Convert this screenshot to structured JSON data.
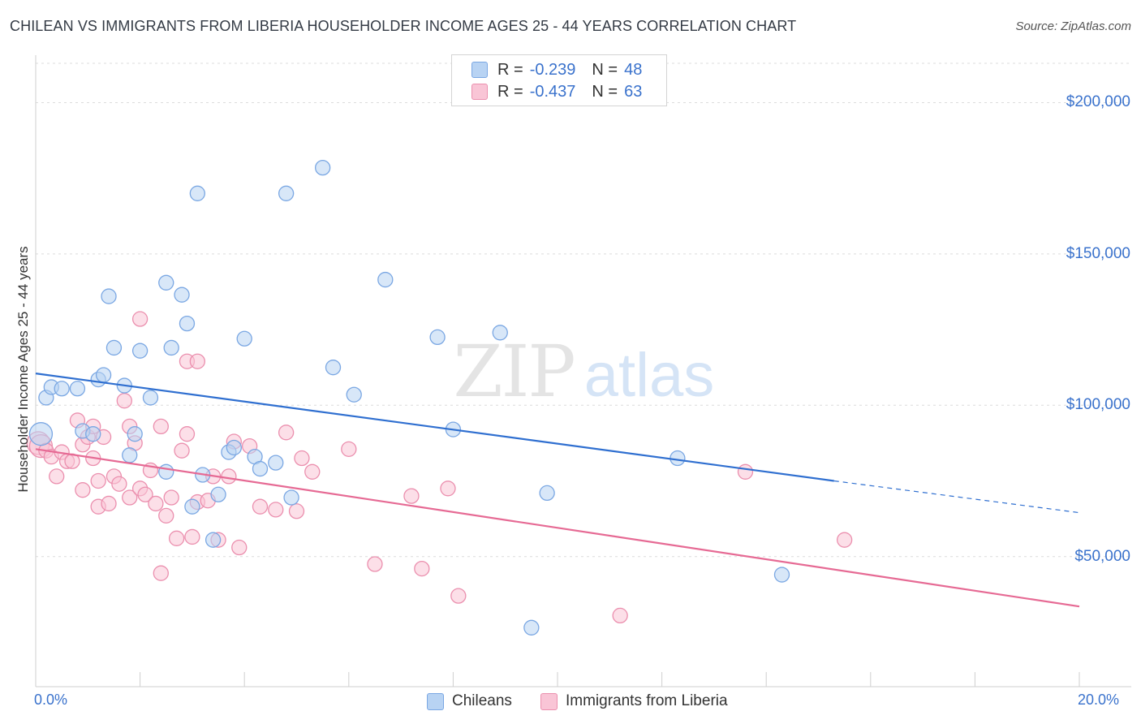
{
  "title": "CHILEAN VS IMMIGRANTS FROM LIBERIA HOUSEHOLDER INCOME AGES 25 - 44 YEARS CORRELATION CHART",
  "source": "Source: ZipAtlas.com",
  "watermark": {
    "zip": "ZIP",
    "atlas": "atlas"
  },
  "legend": {
    "series": [
      {
        "r_label": "R =",
        "r_value": "-0.239",
        "n_label": "N =",
        "n_value": "48"
      },
      {
        "r_label": "R =",
        "r_value": "-0.437",
        "n_label": "N =",
        "n_value": "63"
      }
    ]
  },
  "bottom_legend": [
    "Chileans",
    "Immigrants from Liberia"
  ],
  "colors": {
    "blue_fill": "#b8d3f3",
    "blue_stroke": "#7aa7e3",
    "blue_line": "#2f6fd0",
    "pink_fill": "#f9c5d6",
    "pink_stroke": "#eb8fae",
    "pink_line": "#e66a94",
    "axis_text": "#3a72cc",
    "grid": "#dcdcdc"
  },
  "chart_data": {
    "type": "scatter",
    "title": "CHILEAN VS IMMIGRANTS FROM LIBERIA HOUSEHOLDER INCOME AGES 25 - 44 YEARS CORRELATION CHART",
    "xlabel": "",
    "ylabel": "Householder Income Ages 25 - 44 years",
    "xlim": [
      0,
      20
    ],
    "ylim": [
      7000,
      213000
    ],
    "x_tick_labels": [
      "0.0%",
      "20.0%"
    ],
    "y_ticks": [
      50000,
      100000,
      150000,
      200000
    ],
    "y_tick_labels": [
      "$50,000",
      "$100,000",
      "$150,000",
      "$200,000"
    ],
    "grid": true,
    "legend_position": "top-center",
    "series": [
      {
        "name": "Chileans",
        "color": "#7aa7e3",
        "trend": {
          "x0": 0,
          "y0": 110500,
          "x1": 15.3,
          "y1": 75000,
          "dashed_to_x": 20,
          "dashed_to_y": 64500
        },
        "points": [
          [
            0.1,
            90500
          ],
          [
            0.2,
            102500
          ],
          [
            0.3,
            106000
          ],
          [
            0.5,
            105500
          ],
          [
            0.8,
            105500
          ],
          [
            0.9,
            91500
          ],
          [
            1.1,
            90500
          ],
          [
            1.2,
            108500
          ],
          [
            1.3,
            110000
          ],
          [
            1.4,
            136000
          ],
          [
            1.5,
            119000
          ],
          [
            1.7,
            106500
          ],
          [
            1.8,
            83500
          ],
          [
            1.9,
            90500
          ],
          [
            2.0,
            118000
          ],
          [
            2.2,
            102500
          ],
          [
            2.5,
            78000
          ],
          [
            2.5,
            140500
          ],
          [
            2.6,
            119000
          ],
          [
            2.8,
            136500
          ],
          [
            2.9,
            127000
          ],
          [
            3.0,
            66500
          ],
          [
            3.1,
            170000
          ],
          [
            3.2,
            77000
          ],
          [
            3.4,
            55500
          ],
          [
            3.5,
            70500
          ],
          [
            3.7,
            84500
          ],
          [
            3.8,
            86000
          ],
          [
            4.0,
            122000
          ],
          [
            4.2,
            83000
          ],
          [
            4.3,
            79000
          ],
          [
            4.6,
            81000
          ],
          [
            4.8,
            170000
          ],
          [
            4.9,
            69500
          ],
          [
            5.5,
            178500
          ],
          [
            5.7,
            112500
          ],
          [
            6.1,
            103500
          ],
          [
            6.7,
            141500
          ],
          [
            7.7,
            122500
          ],
          [
            8.0,
            92000
          ],
          [
            8.9,
            124000
          ],
          [
            9.5,
            26500
          ],
          [
            9.8,
            71000
          ],
          [
            12.3,
            82500
          ],
          [
            14.3,
            44000
          ]
        ]
      },
      {
        "name": "Immigrants from Liberia",
        "color": "#eb8fae",
        "trend": {
          "x0": 0,
          "y0": 85500,
          "x1": 20,
          "y1": 33500
        },
        "points": [
          [
            0.05,
            87500
          ],
          [
            0.1,
            86500
          ],
          [
            0.2,
            85000
          ],
          [
            0.3,
            83000
          ],
          [
            0.4,
            76500
          ],
          [
            0.5,
            84500
          ],
          [
            0.6,
            81500
          ],
          [
            0.7,
            81500
          ],
          [
            0.8,
            95000
          ],
          [
            0.9,
            87000
          ],
          [
            0.9,
            72000
          ],
          [
            1.0,
            89500
          ],
          [
            1.1,
            82500
          ],
          [
            1.1,
            93000
          ],
          [
            1.2,
            75000
          ],
          [
            1.2,
            66500
          ],
          [
            1.3,
            89500
          ],
          [
            1.4,
            67500
          ],
          [
            1.5,
            76500
          ],
          [
            1.6,
            74000
          ],
          [
            1.7,
            101500
          ],
          [
            1.8,
            69500
          ],
          [
            1.8,
            93000
          ],
          [
            1.9,
            87500
          ],
          [
            2.0,
            72500
          ],
          [
            2.0,
            128500
          ],
          [
            2.1,
            70500
          ],
          [
            2.2,
            78500
          ],
          [
            2.3,
            67500
          ],
          [
            2.4,
            93000
          ],
          [
            2.4,
            44500
          ],
          [
            2.5,
            63500
          ],
          [
            2.6,
            69500
          ],
          [
            2.7,
            56000
          ],
          [
            2.8,
            85000
          ],
          [
            2.9,
            114500
          ],
          [
            2.9,
            90500
          ],
          [
            3.0,
            56500
          ],
          [
            3.1,
            68000
          ],
          [
            3.1,
            114500
          ],
          [
            3.3,
            68500
          ],
          [
            3.4,
            76500
          ],
          [
            3.5,
            55500
          ],
          [
            3.7,
            76500
          ],
          [
            3.8,
            88000
          ],
          [
            3.9,
            53000
          ],
          [
            4.1,
            86500
          ],
          [
            4.3,
            66500
          ],
          [
            4.6,
            65500
          ],
          [
            4.8,
            91000
          ],
          [
            5.0,
            65000
          ],
          [
            5.1,
            82500
          ],
          [
            5.3,
            78000
          ],
          [
            6.0,
            85500
          ],
          [
            6.5,
            47500
          ],
          [
            7.2,
            70000
          ],
          [
            7.4,
            46000
          ],
          [
            7.9,
            72500
          ],
          [
            8.1,
            37000
          ],
          [
            11.2,
            30500
          ],
          [
            13.6,
            78000
          ],
          [
            15.5,
            55500
          ]
        ]
      }
    ]
  }
}
